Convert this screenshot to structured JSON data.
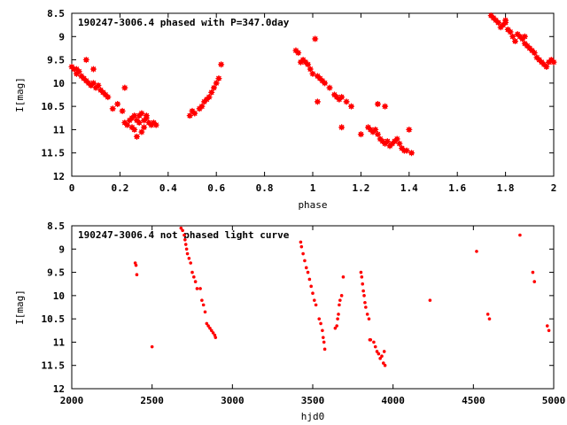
{
  "chart_data": [
    {
      "type": "scatter",
      "title": "190247-3006.4 phased with P=347.0day",
      "xlabel": "phase",
      "ylabel": "I[mag]",
      "xlim": [
        0,
        2
      ],
      "ylim": [
        12,
        8.5
      ],
      "y_inverted": true,
      "grid": false,
      "marker_color": "#ff0000",
      "marker": "star",
      "x_ticks": [
        "0",
        "0.2",
        "0.4",
        "0.6",
        "0.8",
        "1",
        "1.2",
        "1.4",
        "1.6",
        "1.8",
        "2"
      ],
      "y_ticks": [
        "8.5",
        "9",
        "9.5",
        "10",
        "10.5",
        "11",
        "11.5",
        "12"
      ],
      "series": [
        {
          "x": [
            0.0,
            0.01,
            0.02,
            0.04,
            0.05,
            0.06,
            0.07,
            0.08,
            0.09,
            0.1,
            0.11,
            0.12,
            0.13,
            0.14,
            0.15,
            0.17,
            0.19,
            0.21,
            0.22,
            0.23,
            0.24,
            0.25,
            0.26,
            0.27,
            0.28,
            0.29,
            0.3,
            0.31,
            0.32,
            0.33,
            0.34,
            0.35,
            0.25,
            0.26,
            0.27,
            0.28,
            0.29,
            0.3,
            0.31,
            0.22,
            0.02,
            0.03,
            0.09,
            0.06,
            0.49,
            0.5,
            0.51,
            0.53,
            0.54,
            0.55,
            0.56,
            0.57,
            0.58,
            0.59,
            0.6,
            0.61,
            0.62,
            0.93,
            0.94,
            0.95,
            0.96,
            0.97,
            0.98,
            0.99,
            1.0,
            1.01,
            1.02,
            1.03,
            1.04,
            1.05,
            1.07,
            1.09,
            1.1,
            1.11,
            1.12,
            1.14,
            1.16,
            1.2,
            1.23,
            1.24,
            1.25,
            1.26,
            1.27,
            1.28,
            1.29,
            1.3,
            1.31,
            1.32,
            1.33,
            1.34,
            1.35,
            1.36,
            1.37,
            1.38,
            1.4,
            1.41,
            1.39,
            1.12,
            1.27,
            1.3,
            1.02,
            1.74,
            1.75,
            1.76,
            1.77,
            1.78,
            1.79,
            1.8,
            1.81,
            1.82,
            1.83,
            1.84,
            1.85,
            1.86,
            1.87,
            1.88,
            1.89,
            1.9,
            1.91,
            1.92,
            1.93,
            1.94,
            1.95,
            1.96,
            1.97,
            1.98,
            1.99,
            2.0,
            1.8,
            1.88
          ],
          "y": [
            9.65,
            9.7,
            9.8,
            9.85,
            9.9,
            9.95,
            10.0,
            10.05,
            10.0,
            10.1,
            10.05,
            10.15,
            10.2,
            10.25,
            10.3,
            10.55,
            10.45,
            10.6,
            10.85,
            10.9,
            10.8,
            10.75,
            10.7,
            10.8,
            10.7,
            10.65,
            10.8,
            10.75,
            10.85,
            10.9,
            10.85,
            10.9,
            10.95,
            11.0,
            11.15,
            10.85,
            11.05,
            10.95,
            10.7,
            10.1,
            9.7,
            9.75,
            9.7,
            9.5,
            10.7,
            10.6,
            10.65,
            10.55,
            10.5,
            10.4,
            10.35,
            10.3,
            10.2,
            10.1,
            10.0,
            9.9,
            9.6,
            9.3,
            9.35,
            9.55,
            9.5,
            9.55,
            9.6,
            9.7,
            9.8,
            9.05,
            9.85,
            9.9,
            9.95,
            10.0,
            10.1,
            10.25,
            10.3,
            10.35,
            10.3,
            10.4,
            10.5,
            11.1,
            10.95,
            11.0,
            11.05,
            11.0,
            11.1,
            11.2,
            11.25,
            11.3,
            11.25,
            11.35,
            11.3,
            11.25,
            11.2,
            11.3,
            11.4,
            11.45,
            11.0,
            11.5,
            11.45,
            10.95,
            10.45,
            10.5,
            10.4,
            8.55,
            8.6,
            8.65,
            8.7,
            8.8,
            8.75,
            8.7,
            8.85,
            8.9,
            9.0,
            9.1,
            8.95,
            9.0,
            9.05,
            9.15,
            9.2,
            9.25,
            9.3,
            9.35,
            9.45,
            9.5,
            9.55,
            9.6,
            9.65,
            9.55,
            9.5,
            9.55,
            8.65,
            9.0
          ]
        }
      ]
    },
    {
      "type": "scatter",
      "title": "190247-3006.4 not phased light curve",
      "xlabel": "hjd0",
      "ylabel": "I[mag]",
      "xlim": [
        2000,
        5000
      ],
      "ylim": [
        12,
        8.5
      ],
      "y_inverted": true,
      "grid": false,
      "marker_color": "#ff0000",
      "marker": "dot",
      "x_ticks": [
        "2000",
        "2500",
        "3000",
        "3500",
        "4000",
        "4500",
        "5000"
      ],
      "y_ticks": [
        "8.5",
        "9",
        "9.5",
        "10",
        "10.5",
        "11",
        "11.5",
        "12"
      ],
      "series": [
        {
          "x": [
            2395,
            2400,
            2405,
            2500,
            2680,
            2690,
            2700,
            2705,
            2710,
            2715,
            2720,
            2730,
            2740,
            2750,
            2760,
            2770,
            2780,
            2800,
            2810,
            2820,
            2830,
            2840,
            2850,
            2860,
            2870,
            2880,
            2890,
            2895,
            3425,
            3430,
            3440,
            3450,
            3460,
            3470,
            3480,
            3490,
            3500,
            3510,
            3520,
            3540,
            3550,
            3560,
            3565,
            3570,
            3575,
            3640,
            3650,
            3655,
            3660,
            3665,
            3670,
            3680,
            3690,
            3800,
            3805,
            3810,
            3815,
            3820,
            3825,
            3830,
            3840,
            3850,
            3855,
            3860,
            3880,
            3890,
            3900,
            3910,
            3920,
            3930,
            3940,
            3950,
            3945,
            4230,
            4520,
            4590,
            4600,
            4790,
            4870,
            4880,
            4960,
            4970
          ],
          "y": [
            9.3,
            9.35,
            9.55,
            11.1,
            8.55,
            8.6,
            8.7,
            8.8,
            8.9,
            9.0,
            9.1,
            9.2,
            9.3,
            9.5,
            9.6,
            9.7,
            9.85,
            9.85,
            10.1,
            10.2,
            10.35,
            10.6,
            10.65,
            10.7,
            10.75,
            10.8,
            10.85,
            10.9,
            8.85,
            8.95,
            9.1,
            9.25,
            9.4,
            9.5,
            9.65,
            9.8,
            9.95,
            10.1,
            10.2,
            10.5,
            10.6,
            10.75,
            10.9,
            11.0,
            11.15,
            10.7,
            10.65,
            10.5,
            10.4,
            10.2,
            10.1,
            10.0,
            9.6,
            9.5,
            9.6,
            9.75,
            9.9,
            10.0,
            10.15,
            10.25,
            10.4,
            10.5,
            10.95,
            10.95,
            11.0,
            11.1,
            11.2,
            11.25,
            11.35,
            11.3,
            11.45,
            11.5,
            11.2,
            10.1,
            9.05,
            10.4,
            10.5,
            8.7,
            9.5,
            9.7,
            10.65,
            10.75
          ]
        }
      ]
    }
  ]
}
